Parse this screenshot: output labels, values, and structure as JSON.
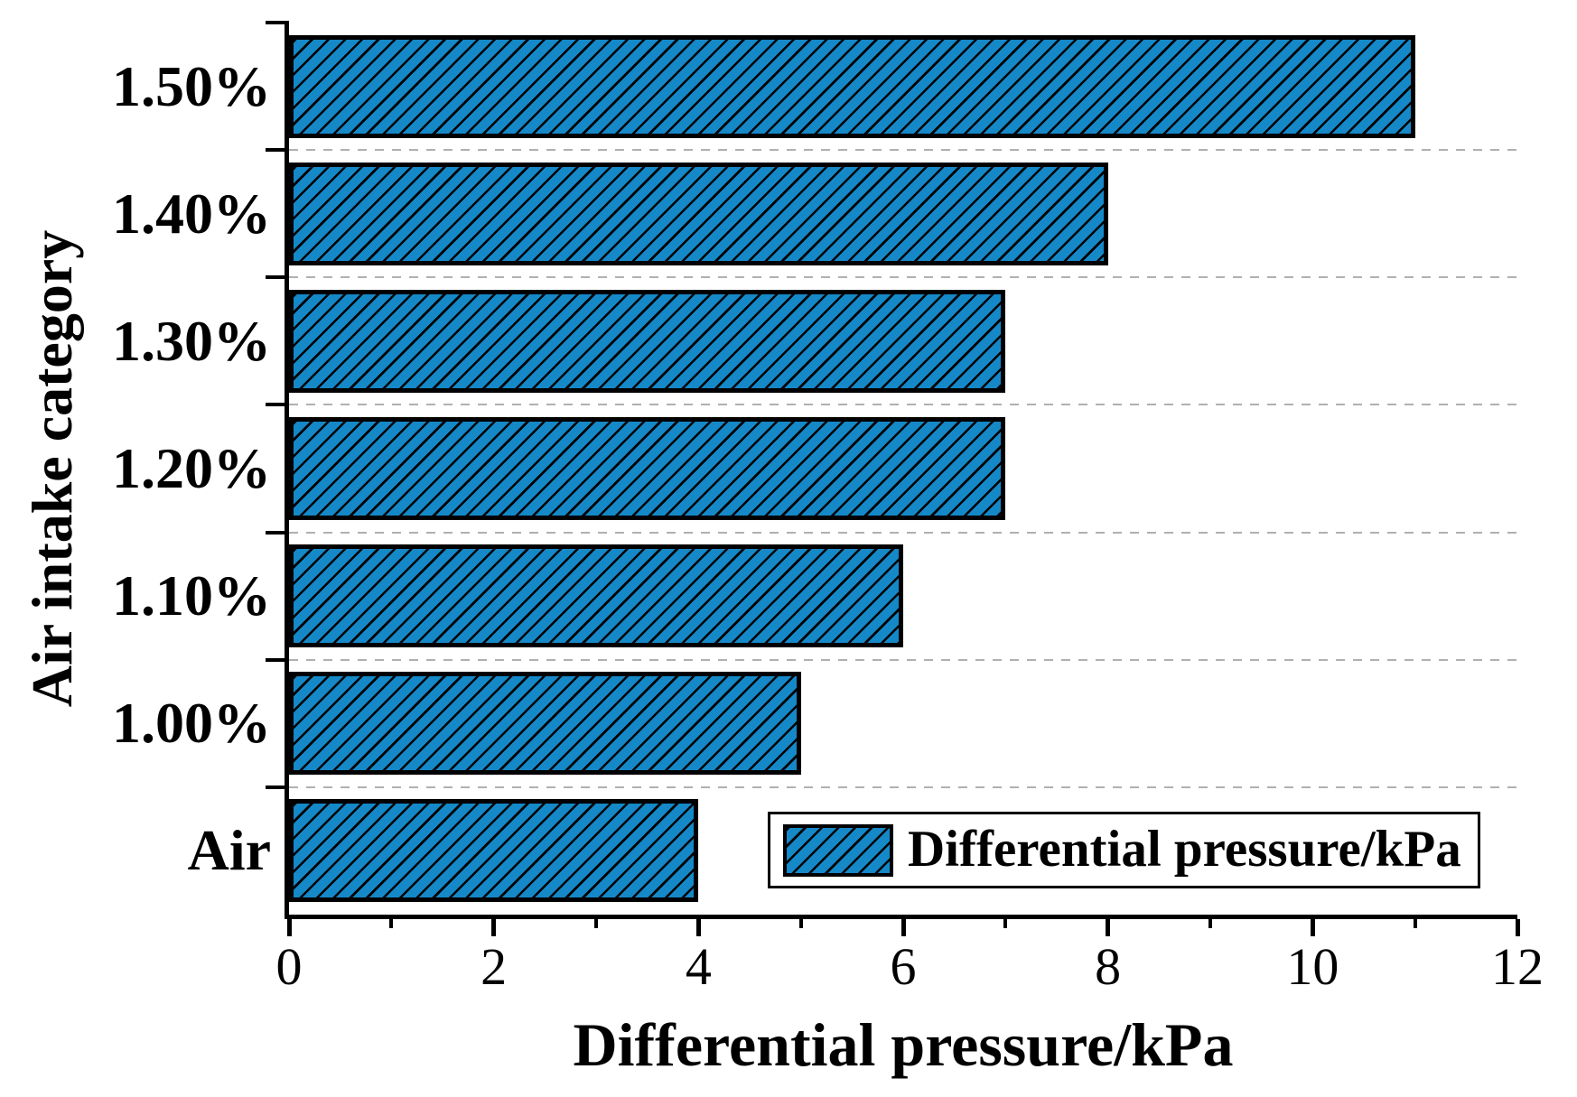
{
  "figure": {
    "background": "#ffffff"
  },
  "chart_data": {
    "type": "bar",
    "orientation": "horizontal",
    "categories": [
      "1.50%",
      "1.40%",
      "1.30%",
      "1.20%",
      "1.10%",
      "1.00%",
      "Air"
    ],
    "values": [
      11,
      8,
      7,
      7,
      6,
      5,
      4
    ],
    "title": "",
    "xlabel": "Differential pressure/kPa",
    "ylabel": "Air intake category",
    "xlim": [
      0,
      12
    ],
    "x_major_ticks": [
      0,
      2,
      4,
      6,
      8,
      10,
      12
    ],
    "x_tick_labels": [
      "0",
      "2",
      "4",
      "6",
      "8",
      "10",
      "12"
    ],
    "x_minor_ticks": [
      1,
      3,
      5,
      7,
      9,
      11
    ],
    "grid": {
      "horizontal_dashed_between_categories": true,
      "vertical": false
    },
    "legend": {
      "label": "Differential pressure/kPa",
      "position": "bottom-right",
      "swatch": "hatched-blue-rectangle"
    },
    "style": {
      "bar_fill": "#1588C8",
      "bar_hatch": "/",
      "hatch_color": "#000000",
      "bar_border_color": "#000000",
      "grid_color": "#b0b0b0",
      "axis_color": "#000000",
      "text_color": "#000000",
      "background": "#ffffff"
    }
  }
}
